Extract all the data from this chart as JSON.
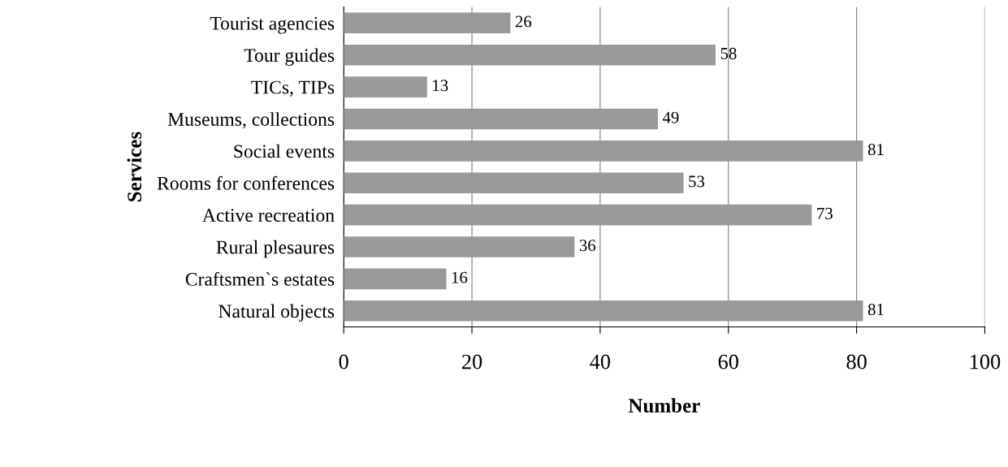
{
  "chart_data": {
    "type": "bar",
    "orientation": "horizontal",
    "xlabel": "Number",
    "ylabel": "Services",
    "categories": [
      "Tourist agencies",
      "Tour guides",
      "TICs, TIPs",
      "Museums, collections",
      "Social events",
      "Rooms for conferences",
      "Active recreation",
      "Rural plesaures",
      "Craftsmen`s estates",
      "Natural objects"
    ],
    "values": [
      26,
      58,
      13,
      49,
      81,
      53,
      73,
      36,
      16,
      81
    ],
    "color": "#999999",
    "xlim": [
      0,
      100
    ],
    "xticks": [
      0,
      20,
      40,
      60,
      80,
      100
    ],
    "grid": "x",
    "data_labels": true
  }
}
